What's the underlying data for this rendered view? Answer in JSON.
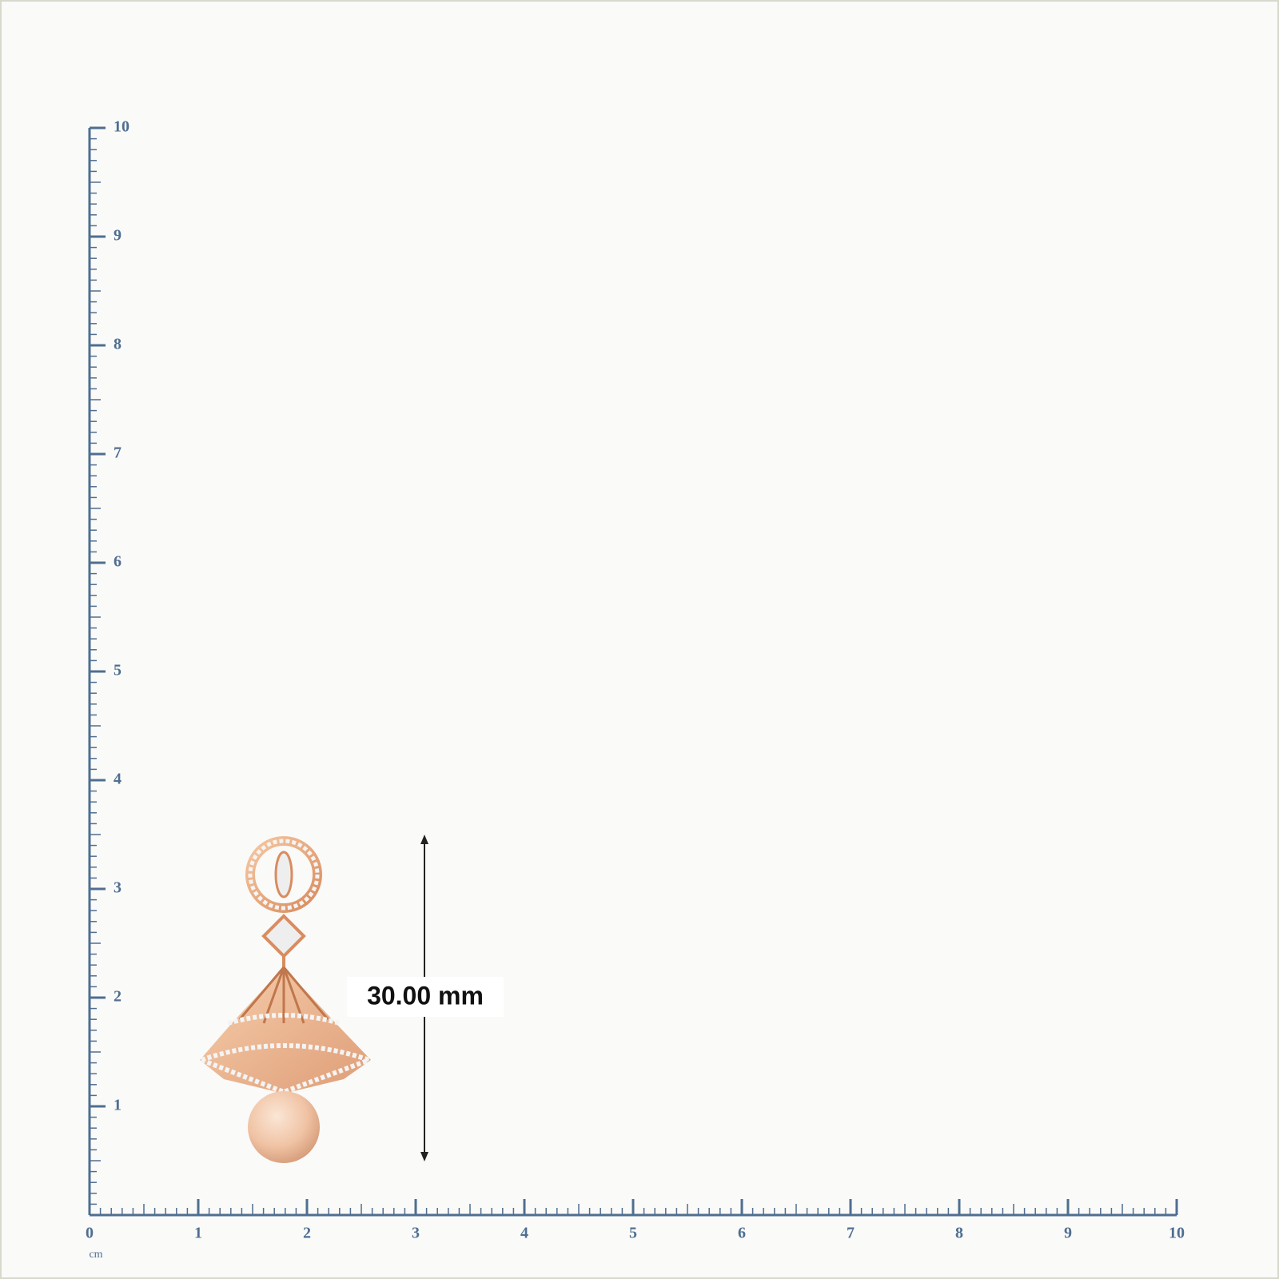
{
  "ruler": {
    "x_labels": [
      "0",
      "1",
      "2",
      "3",
      "4",
      "5",
      "6",
      "7",
      "8",
      "9",
      "10"
    ],
    "y_labels": [
      "1",
      "2",
      "3",
      "4",
      "5",
      "6",
      "7",
      "8",
      "9",
      "10"
    ],
    "unit": "cm"
  },
  "measurement": {
    "label": "30.00 mm"
  }
}
